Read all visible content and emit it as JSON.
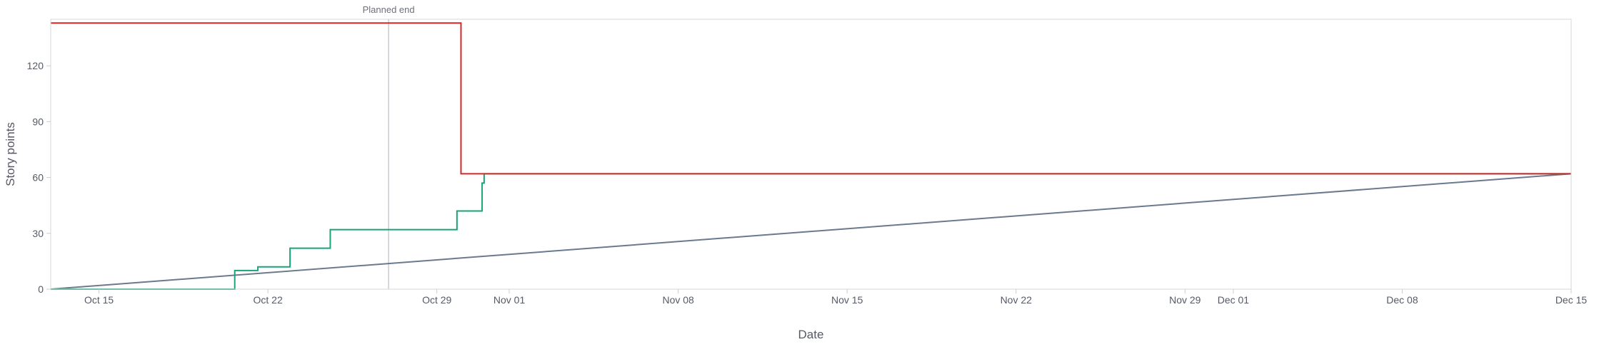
{
  "chart_data": {
    "type": "line",
    "xlabel": "Date",
    "ylabel": "Story points",
    "x_type": "date",
    "xlim": [
      "2023-10-13",
      "2023-12-15"
    ],
    "ylim": [
      0,
      145
    ],
    "y_ticks": [
      0,
      30,
      60,
      90,
      120
    ],
    "x_ticks": [
      {
        "date": "2023-10-15",
        "label": "Oct 15"
      },
      {
        "date": "2023-10-22",
        "label": "Oct 22"
      },
      {
        "date": "2023-10-29",
        "label": "Oct 29"
      },
      {
        "date": "2023-11-01",
        "label": "Nov 01"
      },
      {
        "date": "2023-11-08",
        "label": "Nov 08"
      },
      {
        "date": "2023-11-15",
        "label": "Nov 15"
      },
      {
        "date": "2023-11-22",
        "label": "Nov 22"
      },
      {
        "date": "2023-11-29",
        "label": "Nov 29"
      },
      {
        "date": "2023-12-01",
        "label": "Dec 01"
      },
      {
        "date": "2023-12-08",
        "label": "Dec 08"
      },
      {
        "date": "2023-12-15",
        "label": "Dec 15"
      }
    ],
    "grid": false,
    "annotations": [
      {
        "type": "vline",
        "x": "2023-10-27",
        "label": "Planned end",
        "color": "#c8cbd2"
      }
    ],
    "series": [
      {
        "color": "#d62728",
        "step": true,
        "points": [
          [
            "2023-10-13",
            143
          ],
          [
            "2023-10-30",
            143
          ],
          [
            "2023-10-30",
            62
          ],
          [
            "2023-12-15",
            62
          ]
        ]
      },
      {
        "color": "#1aa37a",
        "step": true,
        "points": [
          [
            "2023-10-13",
            0
          ],
          [
            "2023-10-20 15:00",
            0
          ],
          [
            "2023-10-20 15:00",
            10
          ],
          [
            "2023-10-21 14:00",
            10
          ],
          [
            "2023-10-21 14:00",
            12
          ],
          [
            "2023-10-22 22:00",
            12
          ],
          [
            "2023-10-22 22:00",
            22
          ],
          [
            "2023-10-24 14:00",
            22
          ],
          [
            "2023-10-24 14:00",
            32
          ],
          [
            "2023-10-29 20:00",
            32
          ],
          [
            "2023-10-29 20:00",
            42
          ],
          [
            "2023-10-30 21:00",
            42
          ],
          [
            "2023-10-30 21:00",
            57
          ],
          [
            "2023-10-30 23:00",
            57
          ],
          [
            "2023-10-30 23:00",
            62
          ],
          [
            "2023-12-15",
            62
          ]
        ]
      },
      {
        "color": "#6b7a8c",
        "step": false,
        "points": [
          [
            "2023-10-13",
            0
          ],
          [
            "2023-12-15",
            62
          ]
        ]
      }
    ]
  }
}
